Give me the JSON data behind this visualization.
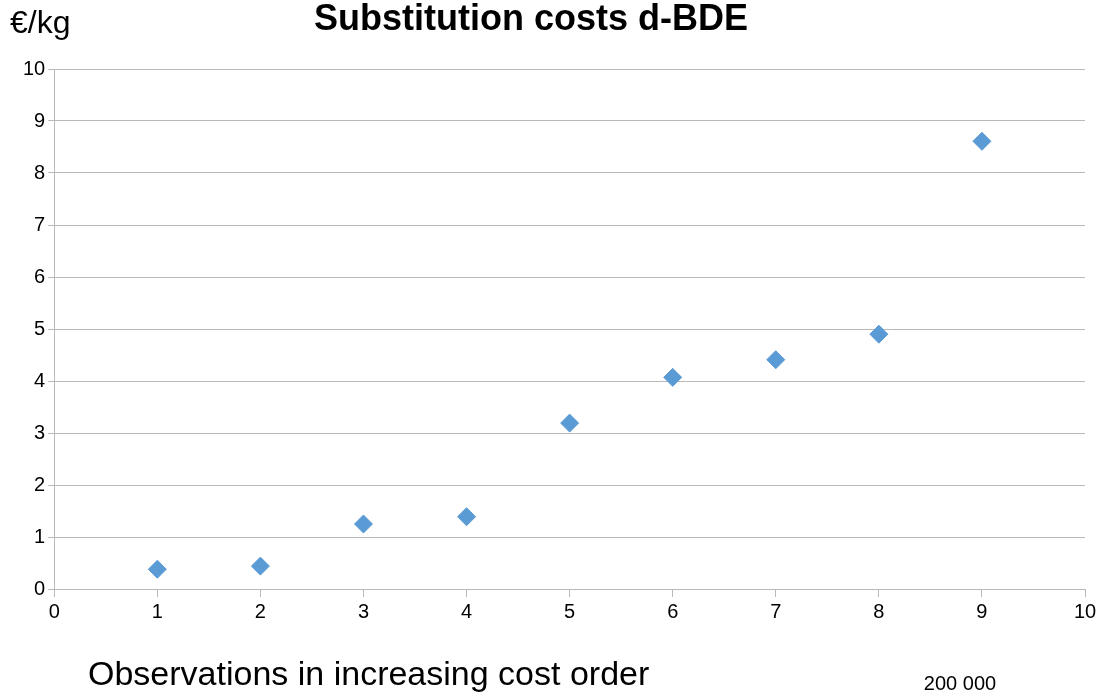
{
  "chart_data": {
    "type": "scatter",
    "title": "Substitution costs d-BDE",
    "ylabel": "€/kg",
    "xlabel": "Observations in increasing cost order",
    "annotations": [
      "200 000"
    ],
    "x": [
      1,
      2,
      3,
      4,
      5,
      6,
      7,
      8,
      9
    ],
    "series": [
      {
        "color": "#5b9bd5",
        "values": [
          0.38,
          0.44,
          1.25,
          1.39,
          3.19,
          4.07,
          4.41,
          4.9,
          8.61
        ]
      }
    ],
    "xlim": [
      0,
      10
    ],
    "xticks": [
      0,
      1,
      2,
      3,
      4,
      5,
      6,
      7,
      8,
      9,
      10
    ],
    "ylim": [
      0,
      10
    ],
    "yticks": [
      0,
      1,
      2,
      3,
      4,
      5,
      6,
      7,
      8,
      9,
      10
    ],
    "grid": "y",
    "marker": "diamond",
    "legend": false
  }
}
